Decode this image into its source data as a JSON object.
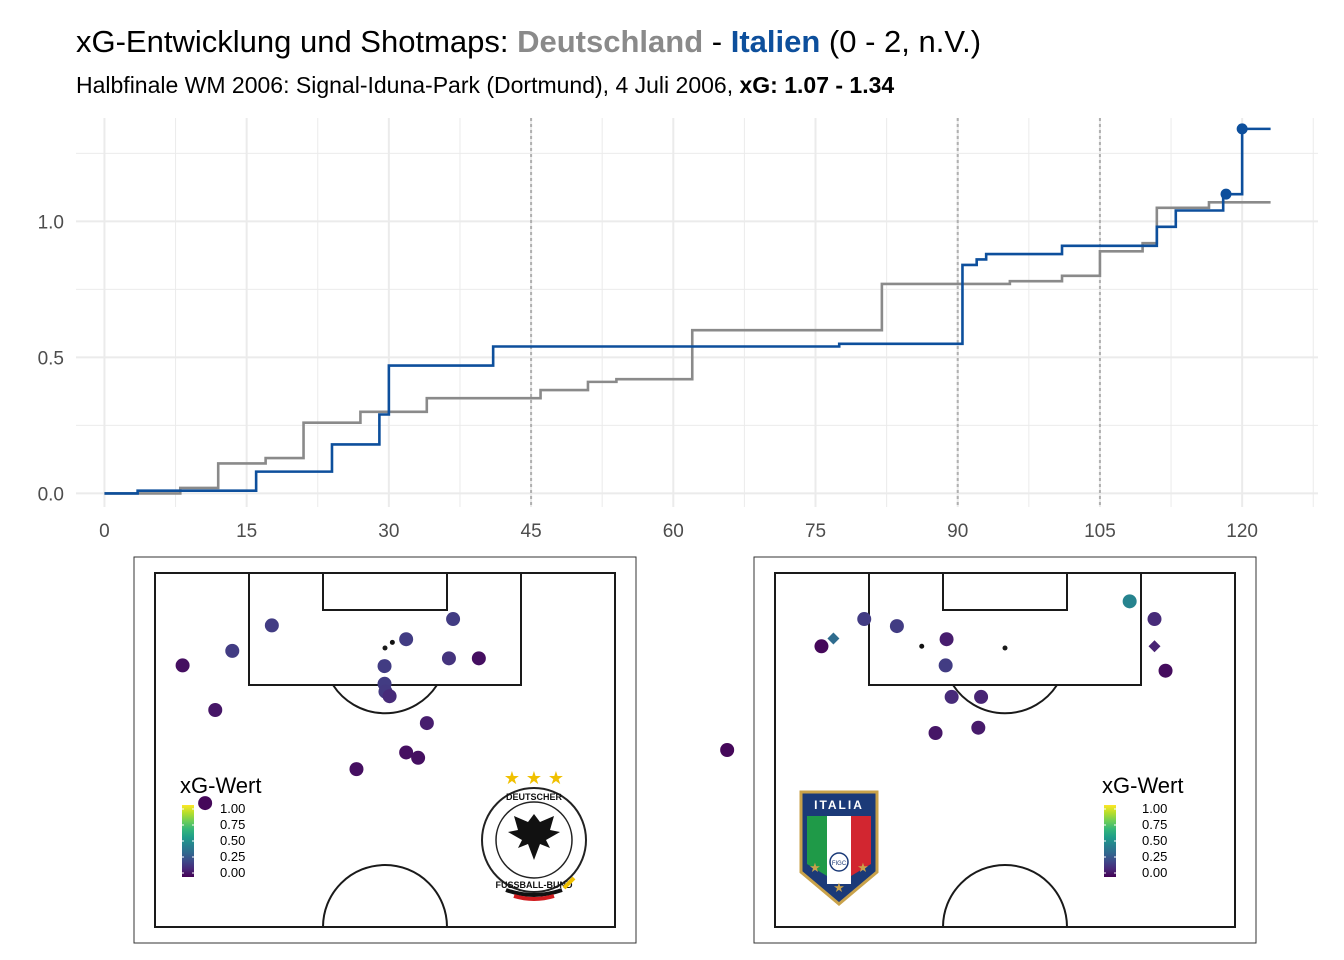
{
  "title": {
    "prefix": "xG-Entwicklung und Shotmaps: ",
    "team_a": "Deutschland",
    "separator": " - ",
    "team_b": "Italien",
    "result": " (0 - 2, n.V.)"
  },
  "subtitle": {
    "text": "Halbfinale WM 2006: Signal-Iduna-Park (Dortmund), 4 Juli 2006, ",
    "xg_label": "xG: 1.07 - 1.34"
  },
  "colors": {
    "team_a": "#8a8a8a",
    "team_b": "#0d4f9c",
    "grid": "#ebebeb",
    "period_line": "#b0b0b0"
  },
  "chart_data": [
    {
      "type": "line",
      "step": true,
      "xlim": [
        -3,
        128
      ],
      "ylim": [
        -0.05,
        1.38
      ],
      "x_ticks": [
        0,
        15,
        30,
        45,
        60,
        75,
        90,
        105,
        120
      ],
      "y_ticks": [
        0.0,
        0.5,
        1.0
      ],
      "y_tick_labels": [
        "0.0",
        "0.5",
        "1.0"
      ],
      "period_lines": [
        45,
        90,
        105
      ],
      "grid": true,
      "series": [
        {
          "team": "Deutschland",
          "color": "#8a8a8a",
          "x": [
            0,
            3.5,
            8,
            12,
            17,
            21,
            27,
            31,
            34,
            46,
            51,
            54,
            62,
            82,
            90.5,
            95.5,
            101,
            105,
            109.5,
            111,
            114,
            116.5,
            123
          ],
          "y": [
            0,
            0.0,
            0.02,
            0.11,
            0.13,
            0.26,
            0.3,
            0.3,
            0.35,
            0.38,
            0.41,
            0.42,
            0.6,
            0.77,
            0.77,
            0.78,
            0.8,
            0.89,
            0.92,
            1.05,
            1.05,
            1.07,
            1.07
          ]
        },
        {
          "team": "Italien",
          "color": "#0d4f9c",
          "x": [
            0,
            3.5,
            16,
            24,
            29,
            30,
            41,
            77.5,
            90.5,
            92,
            93,
            101,
            107.5,
            111,
            113,
            118,
            120,
            123
          ],
          "y": [
            0,
            0.01,
            0.08,
            0.18,
            0.29,
            0.47,
            0.54,
            0.55,
            0.84,
            0.86,
            0.88,
            0.91,
            0.91,
            0.98,
            1.04,
            1.1,
            1.34,
            1.34
          ]
        }
      ],
      "goals": [
        {
          "team": "Italien",
          "minute": 118.3,
          "xg_cum": 1.1
        },
        {
          "team": "Italien",
          "minute": 120.0,
          "xg_cum": 1.34
        }
      ]
    },
    {
      "type": "scatter",
      "team": "Deutschland",
      "logo_text_top": "DEUTSCHER",
      "logo_text_bottom": "FUSSBALL-BUND",
      "legend": {
        "title": "xG-Wert",
        "ticks": [
          "1.00",
          "0.75",
          "0.50",
          "0.25",
          "0.00"
        ]
      },
      "shots": [
        {
          "x": 0.254,
          "y": 0.148,
          "xg": 0.18,
          "shape": "circle"
        },
        {
          "x": 0.06,
          "y": 0.261,
          "xg": 0.04,
          "shape": "circle"
        },
        {
          "x": 0.168,
          "y": 0.22,
          "xg": 0.18,
          "shape": "circle"
        },
        {
          "x": 0.516,
          "y": 0.196,
          "xg": 0.0,
          "shape": "small"
        },
        {
          "x": 0.499,
          "y": 0.263,
          "xg": 0.18,
          "shape": "circle"
        },
        {
          "x": 0.546,
          "y": 0.187,
          "xg": 0.18,
          "shape": "circle"
        },
        {
          "x": 0.648,
          "y": 0.13,
          "xg": 0.18,
          "shape": "circle"
        },
        {
          "x": 0.639,
          "y": 0.241,
          "xg": 0.15,
          "shape": "circle"
        },
        {
          "x": 0.704,
          "y": 0.241,
          "xg": 0.04,
          "shape": "circle"
        },
        {
          "x": 0.499,
          "y": 0.313,
          "xg": 0.18,
          "shape": "circle"
        },
        {
          "x": 0.501,
          "y": 0.335,
          "xg": 0.17,
          "shape": "circle"
        },
        {
          "x": 0.51,
          "y": 0.348,
          "xg": 0.12,
          "shape": "circle"
        },
        {
          "x": 0.131,
          "y": 0.387,
          "xg": 0.06,
          "shape": "circle"
        },
        {
          "x": 0.591,
          "y": 0.424,
          "xg": 0.08,
          "shape": "circle"
        },
        {
          "x": 0.546,
          "y": 0.507,
          "xg": 0.04,
          "shape": "circle"
        },
        {
          "x": 0.572,
          "y": 0.522,
          "xg": 0.04,
          "shape": "circle"
        },
        {
          "x": 0.438,
          "y": 0.554,
          "xg": 0.04,
          "shape": "circle"
        },
        {
          "x": 0.109,
          "y": 0.65,
          "xg": 0.02,
          "shape": "circle"
        }
      ]
    },
    {
      "type": "scatter",
      "team": "Italien",
      "logo_text_top": "ITALIA",
      "logo_text_bottom": "FIGC",
      "legend": {
        "title": "xG-Wert",
        "ticks": [
          "1.00",
          "0.75",
          "0.50",
          "0.25",
          "0.00"
        ]
      },
      "shots": [
        {
          "x": 0.771,
          "y": 0.08,
          "xg": 0.45,
          "shape": "circle"
        },
        {
          "x": 0.825,
          "y": 0.13,
          "xg": 0.12,
          "shape": "circle"
        },
        {
          "x": 0.194,
          "y": 0.13,
          "xg": 0.18,
          "shape": "circle"
        },
        {
          "x": 0.265,
          "y": 0.15,
          "xg": 0.18,
          "shape": "circle"
        },
        {
          "x": 0.127,
          "y": 0.185,
          "xg": 0.35,
          "shape": "diamond"
        },
        {
          "x": 0.101,
          "y": 0.207,
          "xg": 0.02,
          "shape": "circle"
        },
        {
          "x": 0.373,
          "y": 0.187,
          "xg": 0.08,
          "shape": "circle"
        },
        {
          "x": 0.825,
          "y": 0.207,
          "xg": 0.1,
          "shape": "diamond"
        },
        {
          "x": 0.371,
          "y": 0.261,
          "xg": 0.18,
          "shape": "circle"
        },
        {
          "x": 0.319,
          "y": 0.207,
          "xg": 0.0,
          "shape": "small"
        },
        {
          "x": 0.849,
          "y": 0.276,
          "xg": 0.03,
          "shape": "circle"
        },
        {
          "x": 0.384,
          "y": 0.35,
          "xg": 0.12,
          "shape": "circle"
        },
        {
          "x": 0.448,
          "y": 0.35,
          "xg": 0.1,
          "shape": "circle"
        },
        {
          "x": 0.349,
          "y": 0.452,
          "xg": 0.06,
          "shape": "circle"
        },
        {
          "x": 0.442,
          "y": 0.437,
          "xg": 0.07,
          "shape": "circle"
        },
        {
          "x": -0.104,
          "y": 0.5,
          "xg": 0.02,
          "shape": "circle"
        },
        {
          "x": 0.207,
          "y": 0.787,
          "xg": 0.02,
          "shape": "circle"
        }
      ]
    }
  ]
}
